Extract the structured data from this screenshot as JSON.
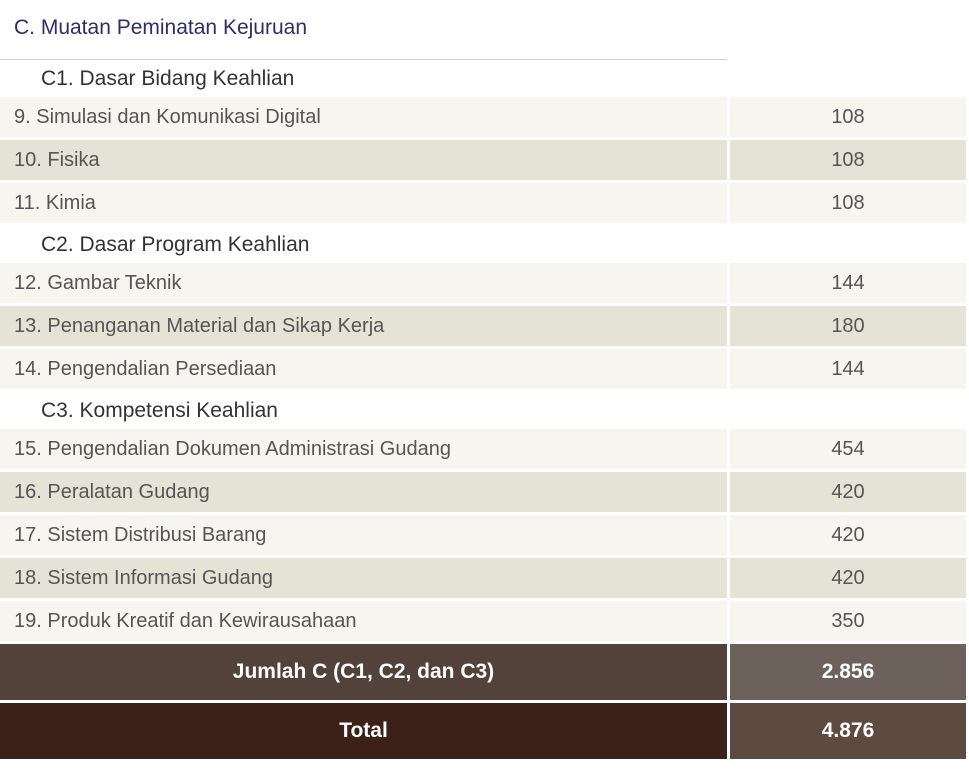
{
  "section": {
    "title": "C. Muatan Peminatan Kejuruan"
  },
  "groups": [
    {
      "title": "C1. Dasar Bidang Keahlian",
      "rows": [
        {
          "name": "9. Simulasi dan Komunikasi Digital",
          "value": "108"
        },
        {
          "name": "10. Fisika",
          "value": "108"
        },
        {
          "name": "11. Kimia",
          "value": "108"
        }
      ]
    },
    {
      "title": "C2. Dasar Program Keahlian",
      "rows": [
        {
          "name": "12. Gambar Teknik",
          "value": "144"
        },
        {
          "name": "13. Penanganan Material dan Sikap Kerja",
          "value": "180"
        },
        {
          "name": "14. Pengendalian Persediaan",
          "value": "144"
        }
      ]
    },
    {
      "title": "C3. Kompetensi Keahlian",
      "rows": [
        {
          "name": "15. Pengendalian Dokumen Administrasi Gudang",
          "value": "454"
        },
        {
          "name": "16. Peralatan Gudang",
          "value": "420"
        },
        {
          "name": "17. Sistem Distribusi Barang",
          "value": "420"
        },
        {
          "name": "18. Sistem Informasi Gudang",
          "value": "420"
        },
        {
          "name": "19. Produk Kreatif dan Kewirausahaan",
          "value": "350"
        }
      ]
    }
  ],
  "summary": {
    "label": "Jumlah C (C1, C2, dan C3)",
    "value": "2.856"
  },
  "total": {
    "label": "Total",
    "value": "4.876"
  }
}
